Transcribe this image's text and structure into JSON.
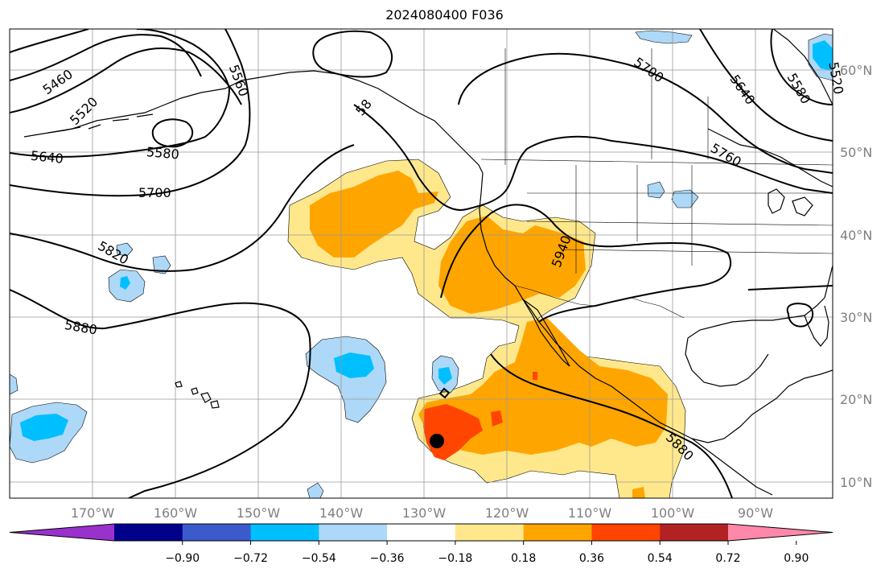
{
  "title": "2024080400 F036",
  "lat_labels": [
    "60°N",
    "50°N",
    "40°N",
    "30°N",
    "20°N",
    "10°N"
  ],
  "lon_labels": [
    "170°W",
    "160°W",
    "150°W",
    "140°W",
    "130°W",
    "120°W",
    "110°W",
    "100°W",
    "90°W"
  ],
  "contour_labels": [
    "5460",
    "5520",
    "5640",
    "5580",
    "5700",
    "5820",
    "5880",
    "5560",
    "58",
    "5700",
    "5640",
    "5580",
    "5520",
    "5760",
    "5940",
    "5880"
  ],
  "colorbar": {
    "ticks": [
      "−0.90",
      "−0.72",
      "−0.54",
      "−0.36",
      "−0.18",
      "0.18",
      "0.36",
      "0.54",
      "0.72",
      "0.90"
    ],
    "colors": [
      "#9932cc",
      "#00008b",
      "#3b5bcc",
      "#00bfff",
      "#add8f7",
      "#ffffff",
      "#ffe88c",
      "#ffa500",
      "#ff4500",
      "#b22222",
      "#ff88aa"
    ]
  },
  "shading_colors": {
    "light_blue": "#add8f7",
    "blue": "#00bfff",
    "light_yellow": "#ffe88c",
    "orange": "#ffa500",
    "red_orange": "#ff4500"
  }
}
